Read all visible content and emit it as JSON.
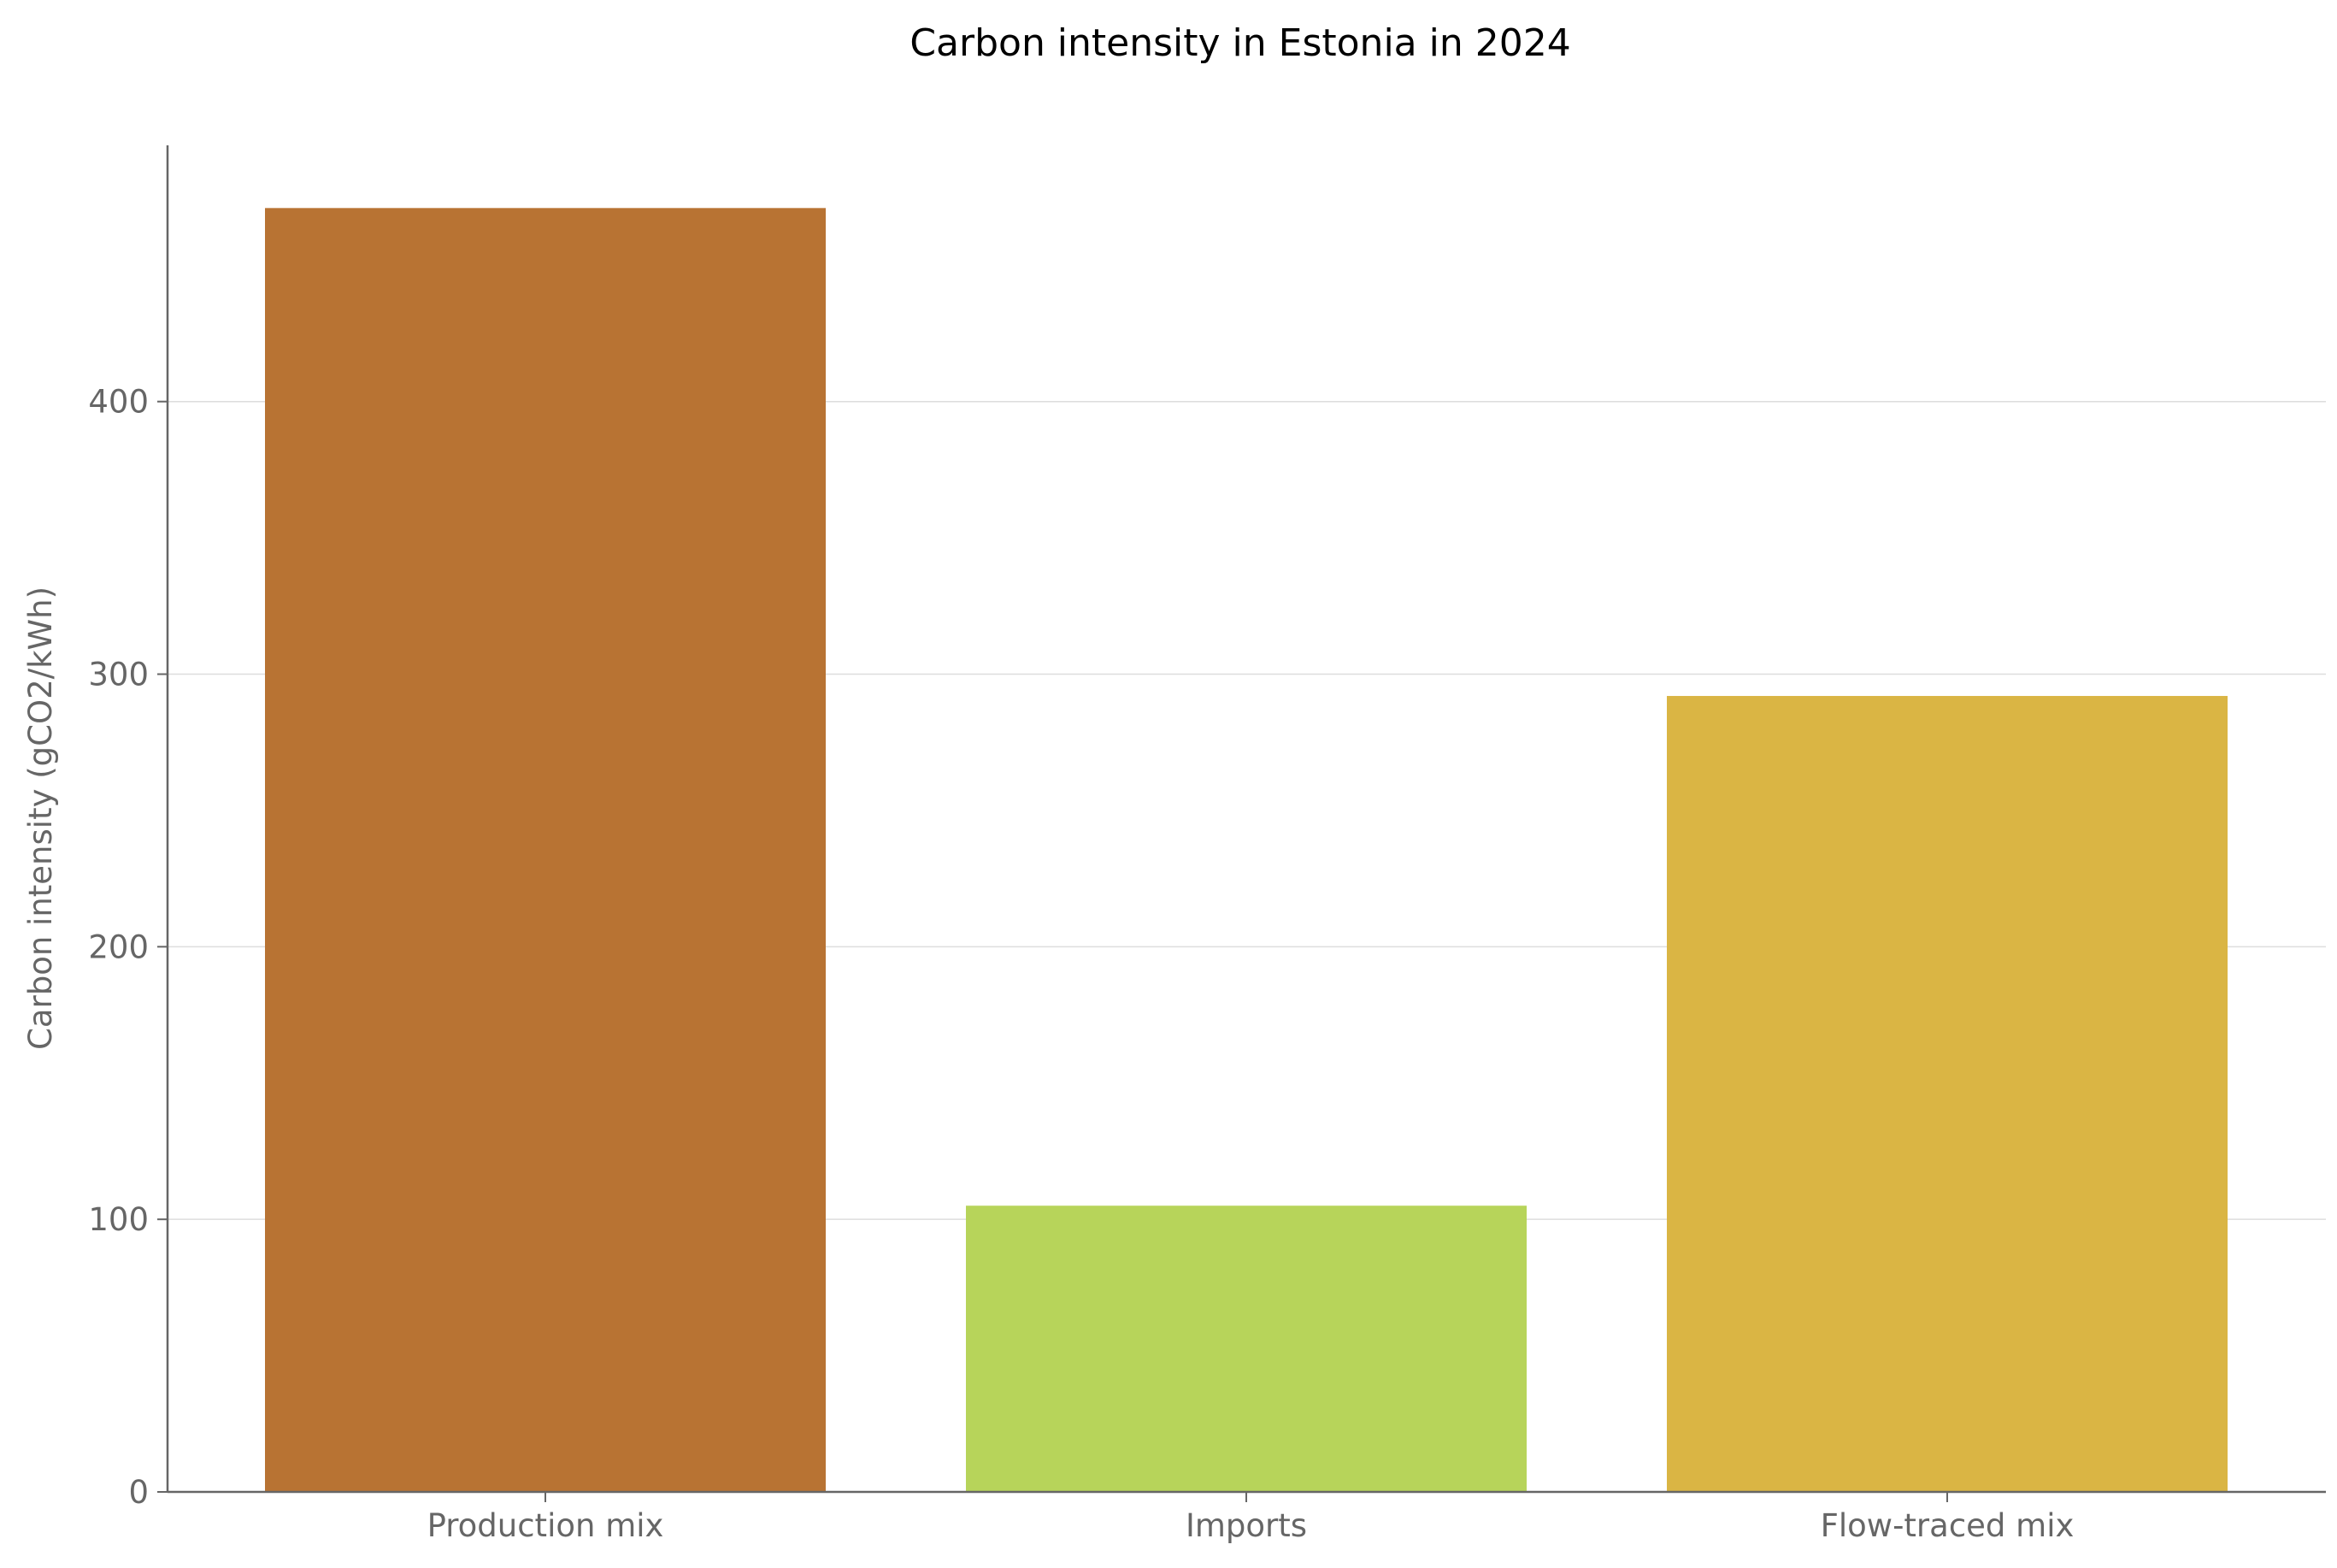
{
  "chart_data": {
    "type": "bar",
    "title": "Carbon intensity in Estonia in 2024",
    "xlabel": "",
    "ylabel": "Carbon intensity (gCO2/kWh)",
    "categories": [
      "Production mix",
      "Imports",
      "Flow-traced mix"
    ],
    "values": [
      471,
      105,
      292
    ],
    "colors": [
      "#b87333",
      "#b7d45a",
      "#dab544"
    ],
    "ylim": [
      0,
      494
    ],
    "yticks": [
      0,
      100,
      200,
      300,
      400
    ],
    "grid": "horizontal",
    "legend": "none"
  }
}
